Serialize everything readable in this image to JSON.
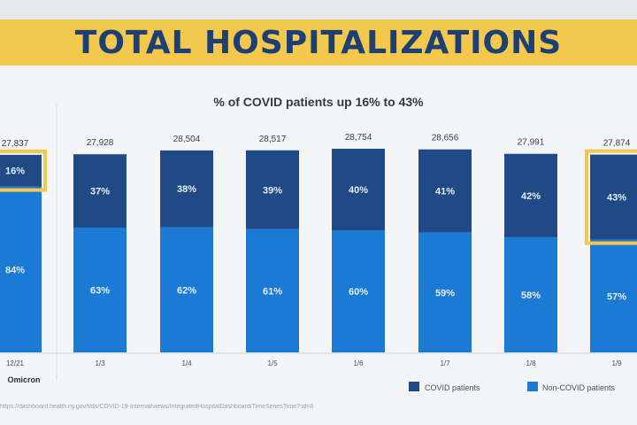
{
  "title": "TOTAL HOSPITALIZATIONS",
  "source_url": "https://dashboard.health.ny.gov/t/ds/COVID-19-Internal/views/IntegratedHospitalDashboard/TimeSeriesTime?:id=6",
  "colors": {
    "banner": "#f2c94c",
    "title_text": "#1d3f74",
    "covid": "#1f4a85",
    "non_covid": "#1a7ad4",
    "highlight": "#f2c94c"
  },
  "chart_data": {
    "type": "bar",
    "subtitle": "% of COVID patients up 16% to 43%",
    "categories": [
      "12/21",
      "1/3",
      "1/4",
      "1/5",
      "1/6",
      "1/7",
      "1/8",
      "1/9"
    ],
    "totals": [
      "27,837",
      "27,928",
      "28,504",
      "28,517",
      "28,754",
      "28,656",
      "27,991",
      "27,874"
    ],
    "series": [
      {
        "name": "COVID patients",
        "values": [
          16,
          37,
          38,
          39,
          40,
          41,
          42,
          43
        ],
        "labels": [
          "16%",
          "37%",
          "38%",
          "39%",
          "40%",
          "41%",
          "42%",
          "43%"
        ]
      },
      {
        "name": "Non-COVID patients",
        "values": [
          84,
          63,
          62,
          61,
          60,
          59,
          58,
          57
        ],
        "labels": [
          "84%",
          "63%",
          "62%",
          "61%",
          "60%",
          "59%",
          "58%",
          "57%"
        ]
      }
    ],
    "highlighted_categories": [
      "12/21",
      "1/9"
    ],
    "annotation": "Omicron",
    "legend_position": "bottom-right"
  }
}
